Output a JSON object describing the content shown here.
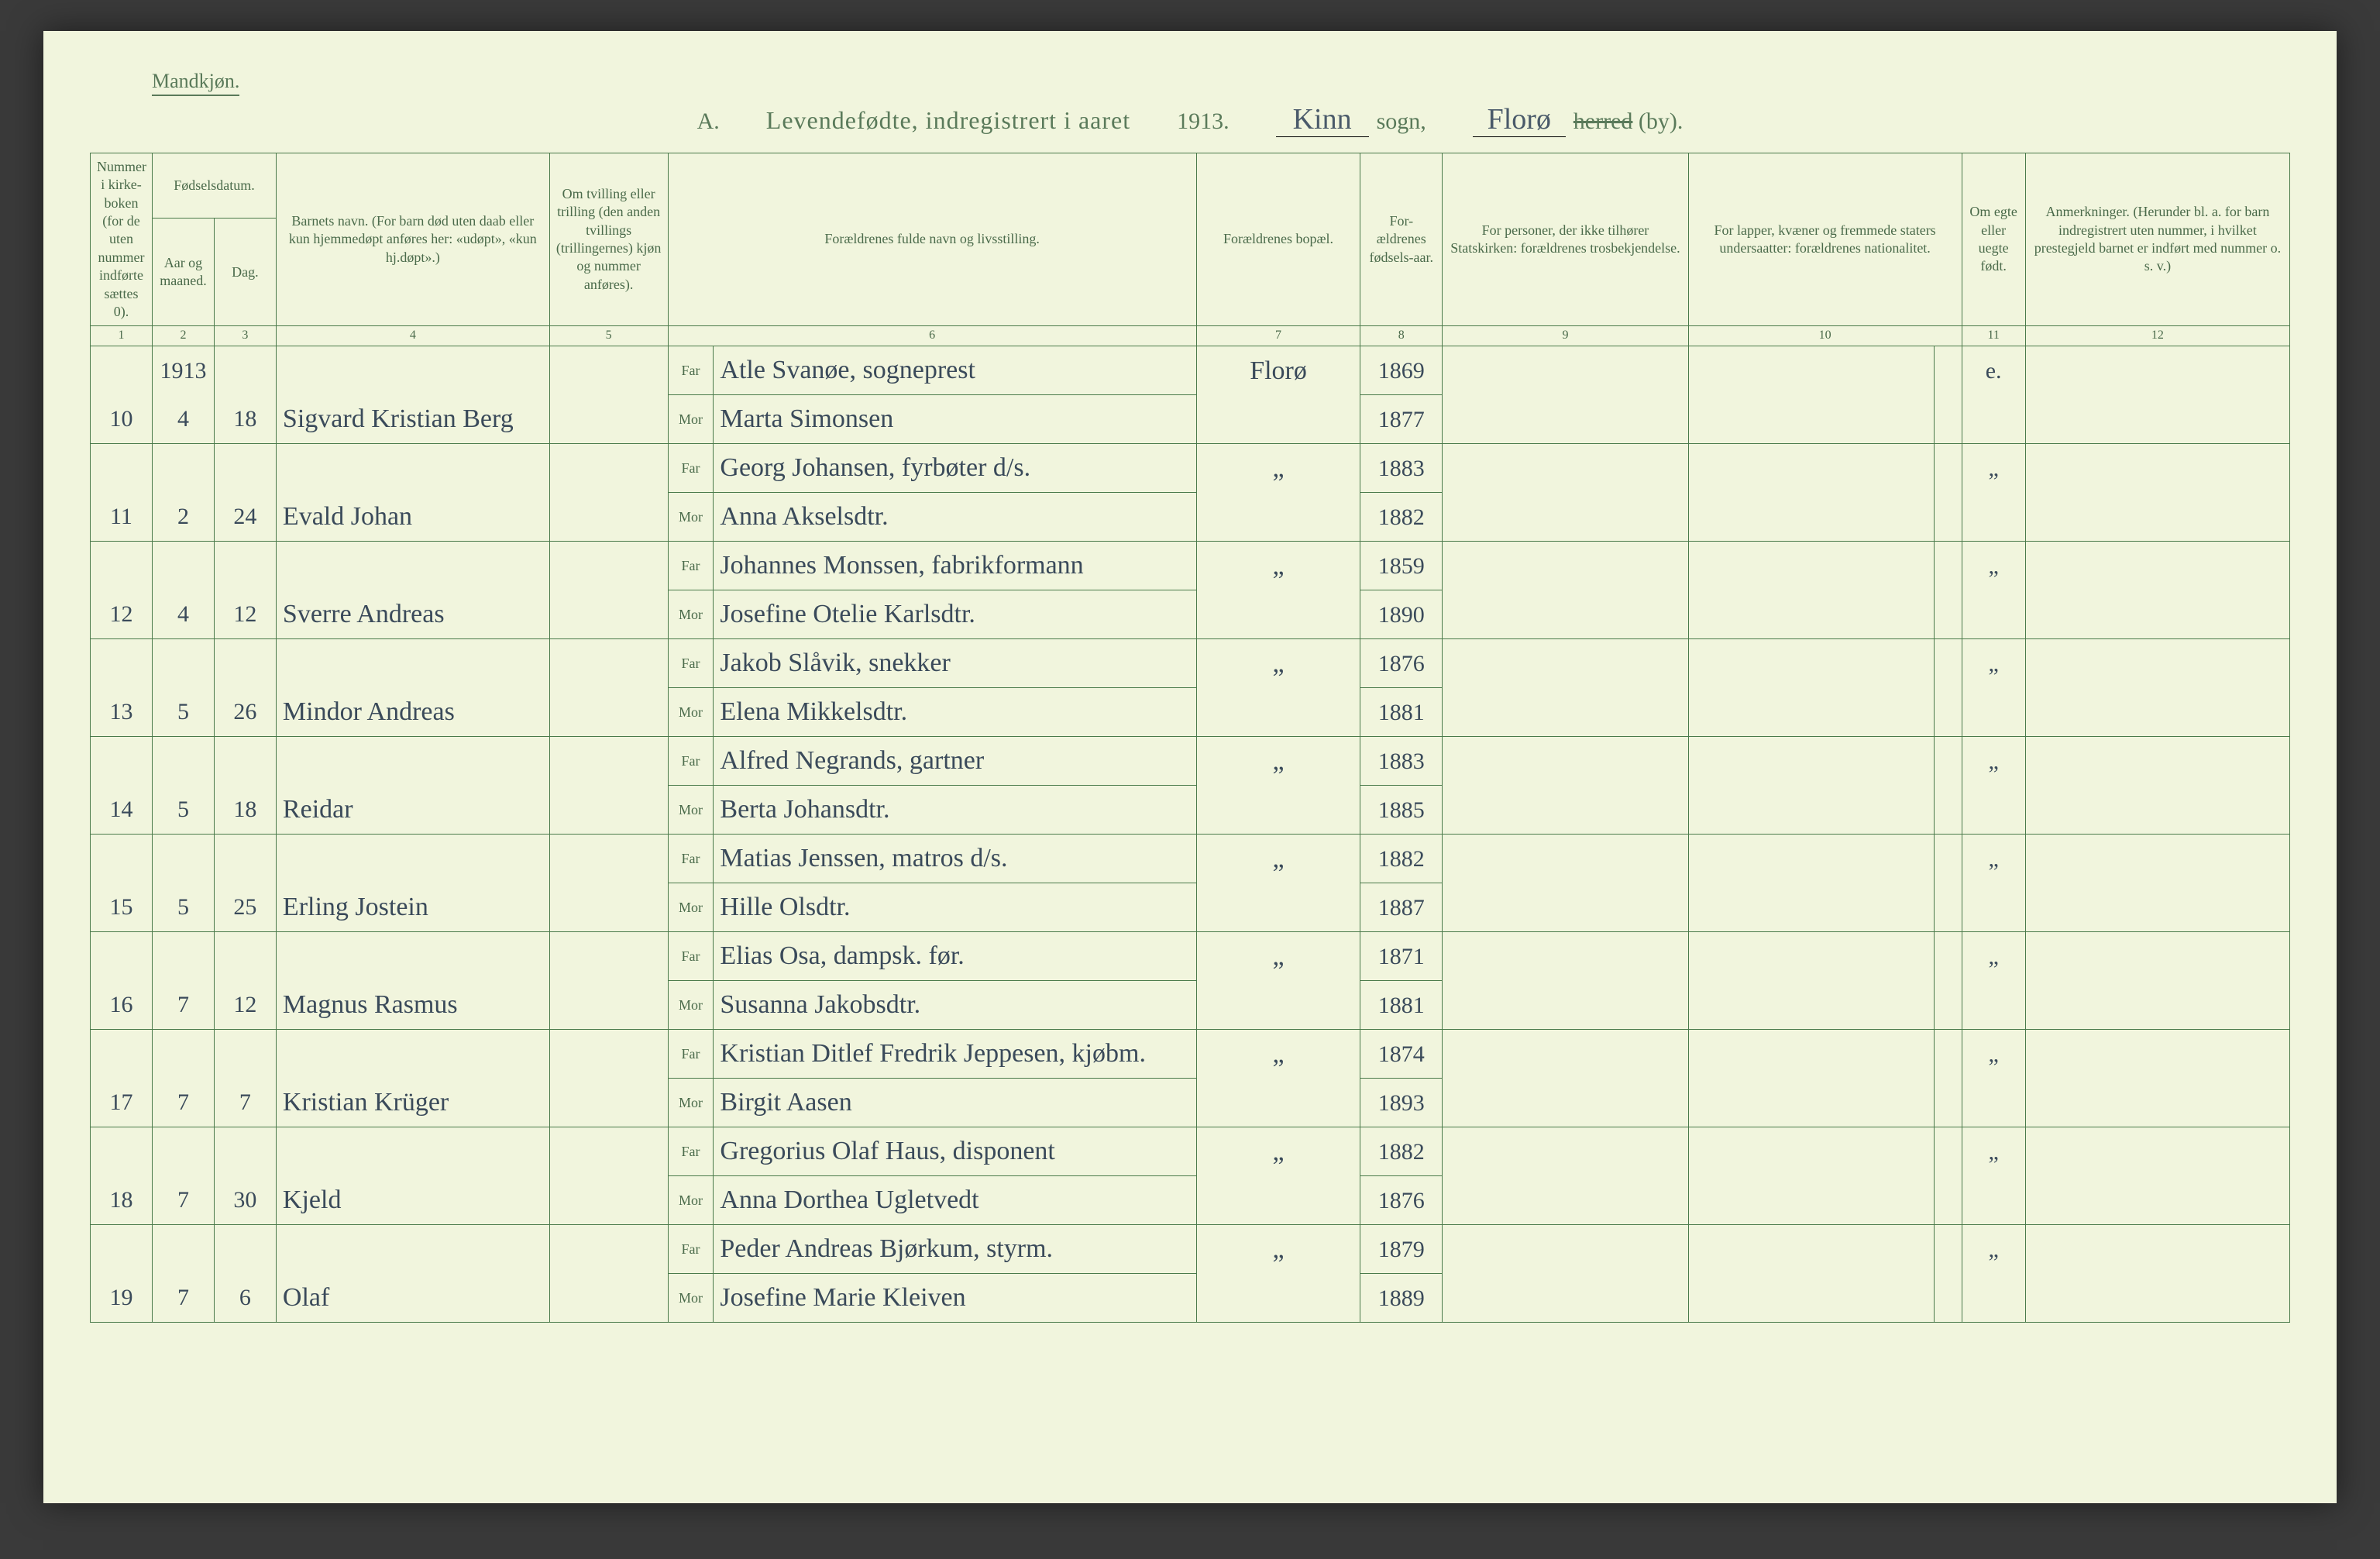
{
  "header": {
    "gender": "Mandkjøn.",
    "title_prefix": "A.",
    "title_main": "Levendefødte, indregistrert i aaret",
    "year": "1913.",
    "sogn_value": "Kinn",
    "sogn_label": "sogn,",
    "herred_value": "Florø",
    "herred_struck": "herred",
    "herred_suffix": "(by)."
  },
  "columns": {
    "c1": "Nummer i kirke-boken (for de uten nummer indførte sættes 0).",
    "c2_group": "Fødselsdatum.",
    "c2": "Aar og maaned.",
    "c3": "Dag.",
    "c4": "Barnets navn.\n(For barn død uten daab eller kun hjemmedøpt anføres her: «udøpt», «kun hj.døpt».)",
    "c5": "Om tvilling eller trilling (den anden tvillings (trillingernes) kjøn og nummer anføres).",
    "c6": "Forældrenes fulde navn og livsstilling.",
    "c7": "Forældrenes bopæl.",
    "c8": "For-ældrenes fødsels-aar.",
    "c9": "For personer, der ikke tilhører Statskirken: forældrenes trosbekjendelse.",
    "c10": "For lapper, kvæner og fremmede staters undersaatter: forældrenes nationalitet.",
    "c11": "Om egte eller uegte født.",
    "c12": "Anmerkninger.\n(Herunder bl. a. for barn indregistrert uten nummer, i hvilket prestegjeld barnet er indført med nummer o. s. v.)",
    "nums": [
      "1",
      "2",
      "3",
      "4",
      "5",
      "",
      "6",
      "7",
      "8",
      "9",
      "10",
      "",
      "11",
      "12"
    ]
  },
  "year_in_col2": "1913",
  "far_label": "Far",
  "mor_label": "Mor",
  "rows": [
    {
      "num": "10",
      "month": "4",
      "day": "18",
      "child": "Sigvard Kristian Berg",
      "far": "Atle Svanøe, sogneprest",
      "mor": "Marta Simonsen",
      "bopel": "Florø",
      "far_year": "1869",
      "mor_year": "1877",
      "egte": "e."
    },
    {
      "num": "11",
      "month": "2",
      "day": "24",
      "child": "Evald Johan",
      "far": "Georg Johansen, fyrbøter d/s.",
      "mor": "Anna Akselsdtr.",
      "bopel": "„",
      "far_year": "1883",
      "mor_year": "1882",
      "egte": "„"
    },
    {
      "num": "12",
      "month": "4",
      "day": "12",
      "child": "Sverre Andreas",
      "far": "Johannes Monssen, fabrikformann",
      "mor": "Josefine Otelie Karlsdtr.",
      "bopel": "„",
      "far_year": "1859",
      "mor_year": "1890",
      "egte": "„"
    },
    {
      "num": "13",
      "month": "5",
      "day": "26",
      "child": "Mindor Andreas",
      "far": "Jakob Slåvik, snekker",
      "mor": "Elena Mikkelsdtr.",
      "bopel": "„",
      "far_year": "1876",
      "mor_year": "1881",
      "egte": "„"
    },
    {
      "num": "14",
      "month": "5",
      "day": "18",
      "child": "Reidar",
      "far": "Alfred Negrands, gartner",
      "mor": "Berta Johansdtr.",
      "bopel": "„",
      "far_year": "1883",
      "mor_year": "1885",
      "egte": "„"
    },
    {
      "num": "15",
      "month": "5",
      "day": "25",
      "child": "Erling Jostein",
      "far": "Matias Jenssen, matros d/s.",
      "mor": "Hille Olsdtr.",
      "bopel": "„",
      "far_year": "1882",
      "mor_year": "1887",
      "egte": "„"
    },
    {
      "num": "16",
      "month": "7",
      "day": "12",
      "child": "Magnus Rasmus",
      "far": "Elias Osa, dampsk. før.",
      "mor": "Susanna Jakobsdtr.",
      "bopel": "„",
      "far_year": "1871",
      "mor_year": "1881",
      "egte": "„"
    },
    {
      "num": "17",
      "month": "7",
      "day": "7",
      "child": "Kristian Krüger",
      "far": "Kristian Ditlef Fredrik Jeppesen, kjøbm.",
      "mor": "Birgit Aasen",
      "bopel": "„",
      "far_year": "1874",
      "mor_year": "1893",
      "egte": "„"
    },
    {
      "num": "18",
      "month": "7",
      "day": "30",
      "child": "Kjeld",
      "far": "Gregorius Olaf Haus, disponent",
      "mor": "Anna Dorthea Ugletvedt",
      "bopel": "„",
      "far_year": "1882",
      "mor_year": "1876",
      "egte": "„"
    },
    {
      "num": "19",
      "month": "7",
      "day": "6",
      "child": "Olaf",
      "far": "Peder Andreas Bjørkum, styrm.",
      "mor": "Josefine Marie Kleiven",
      "bopel": "„",
      "far_year": "1879",
      "mor_year": "1889",
      "egte": "„"
    }
  ],
  "colors": {
    "page_bg": "#f1f5dd",
    "rule": "#4a7a4a",
    "print_text": "#4a6a4a",
    "ink": "#3a4a5a"
  }
}
